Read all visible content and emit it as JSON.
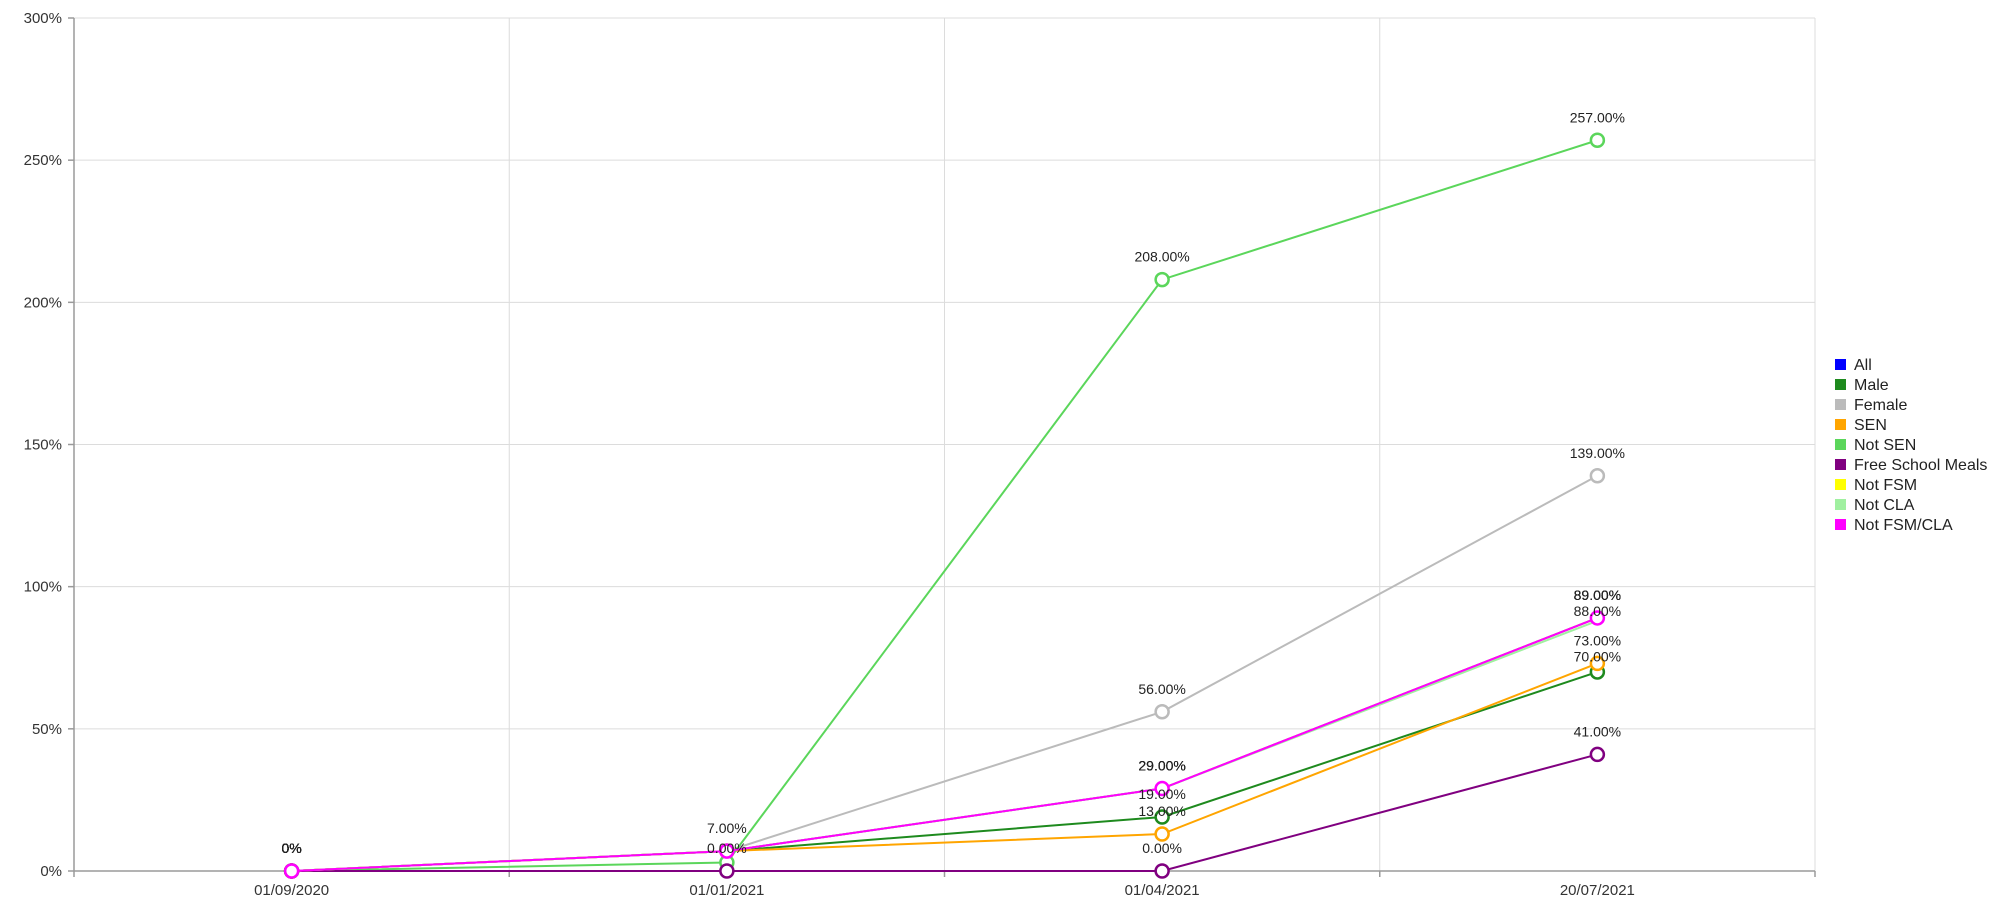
{
  "chart_data": {
    "type": "line",
    "title": "",
    "xlabel": "",
    "ylabel": "",
    "categories": [
      "01/09/2020",
      "01/01/2021",
      "01/04/2021",
      "20/07/2021"
    ],
    "y_tick_labels": [
      "0%",
      "50%",
      "100%",
      "150%",
      "200%",
      "250%",
      "300%"
    ],
    "ylim": [
      0,
      300
    ],
    "grid": true,
    "legend_position": "right",
    "series": [
      {
        "name": "All",
        "color": "#0000ff",
        "values": [
          0,
          7,
          29,
          89
        ],
        "labels": [
          "0%",
          "7.00%",
          "29.00%",
          "89.00%"
        ],
        "show_markers": false
      },
      {
        "name": "Male",
        "color": "#1e8a1e",
        "values": [
          0,
          7,
          19,
          70
        ],
        "labels": [
          "0%",
          "",
          "19.00%",
          "70.00%"
        ],
        "show_markers": true
      },
      {
        "name": "Female",
        "color": "#bbbbbb",
        "values": [
          0,
          7,
          56,
          139
        ],
        "labels": [
          "0%",
          "",
          "56.00%",
          "139.00%"
        ],
        "show_markers": true
      },
      {
        "name": "SEN",
        "color": "#ffa500",
        "values": [
          0,
          7,
          13,
          73
        ],
        "labels": [
          "0%",
          "",
          "13.00%",
          "73.00%"
        ],
        "show_markers": true
      },
      {
        "name": "Not SEN",
        "color": "#5bd65b",
        "values": [
          0,
          3,
          208,
          257
        ],
        "labels": [
          "0%",
          "",
          "208.00%",
          "257.00%"
        ],
        "show_markers": true
      },
      {
        "name": "Free School Meals",
        "color": "#800080",
        "values": [
          0,
          0,
          0,
          41
        ],
        "labels": [
          "0%",
          "0.00%",
          "0.00%",
          "41.00%"
        ],
        "show_markers": true
      },
      {
        "name": "Not FSM",
        "color": "#ffff00",
        "values": [
          0,
          7,
          29,
          89
        ],
        "labels": [
          "0%",
          "",
          "29.00%",
          "89.00%"
        ],
        "show_markers": false
      },
      {
        "name": "Not CLA",
        "color": "#a0f0a0",
        "values": [
          0,
          7,
          29,
          88
        ],
        "labels": [
          "0%",
          "",
          "",
          "88.00%"
        ],
        "show_markers": false
      },
      {
        "name": "Not FSM/CLA",
        "color": "#ff00ff",
        "values": [
          0,
          7,
          29,
          89
        ],
        "labels": [
          "0%",
          "",
          "29.00%",
          "89.00%"
        ],
        "show_markers": true
      }
    ]
  }
}
